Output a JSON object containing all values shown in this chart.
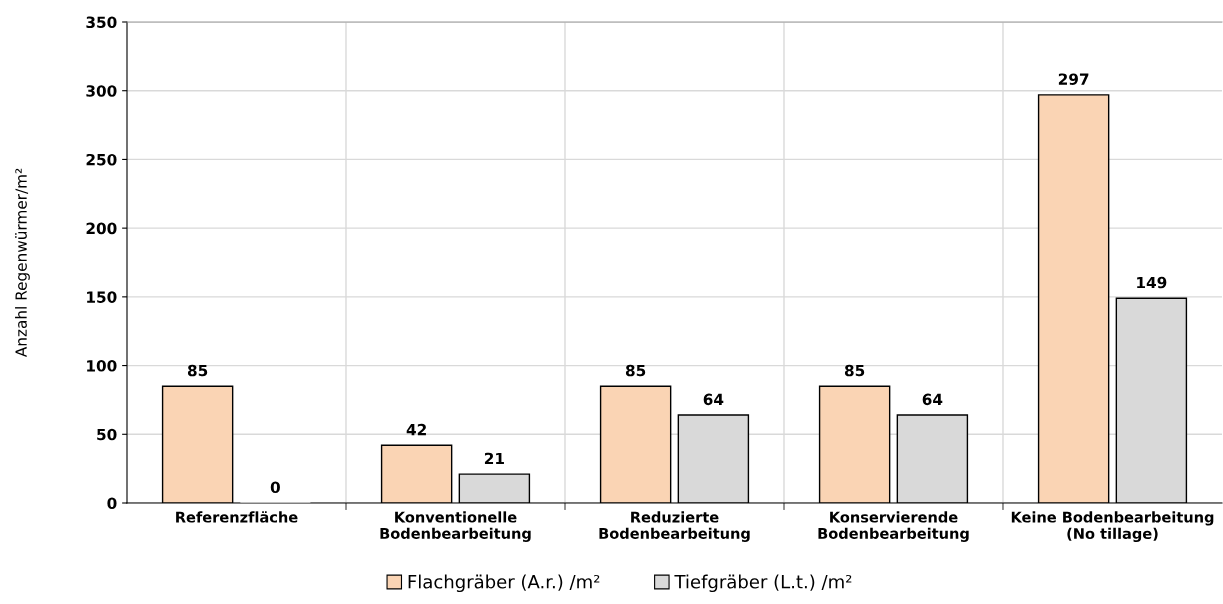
{
  "chart_data": {
    "type": "bar",
    "ylabel": "Anzahl Regenwürmer/m²",
    "categories": [
      "Referenzfläche",
      "Konventionelle\nBodenbearbeitung",
      "Reduzierte\nBodenbearbeitung",
      "Konservierende\nBodenbearbeitung",
      "Keine Bodenbearbeitung\n(No tillage)"
    ],
    "series": [
      {
        "name": "Flachgräber (A.r.) /m²",
        "color": "#fad4b4",
        "values": [
          85,
          42,
          85,
          85,
          297
        ]
      },
      {
        "name": "Tiefgräber (L.t.) /m²",
        "color": "#d9d9d9",
        "values": [
          0,
          21,
          64,
          64,
          149
        ]
      }
    ],
    "ylim": [
      0,
      350
    ],
    "yticks": [
      0,
      50,
      100,
      150,
      200,
      250,
      300,
      350
    ],
    "grid": true,
    "legend": "bottom",
    "data_labels": true
  }
}
